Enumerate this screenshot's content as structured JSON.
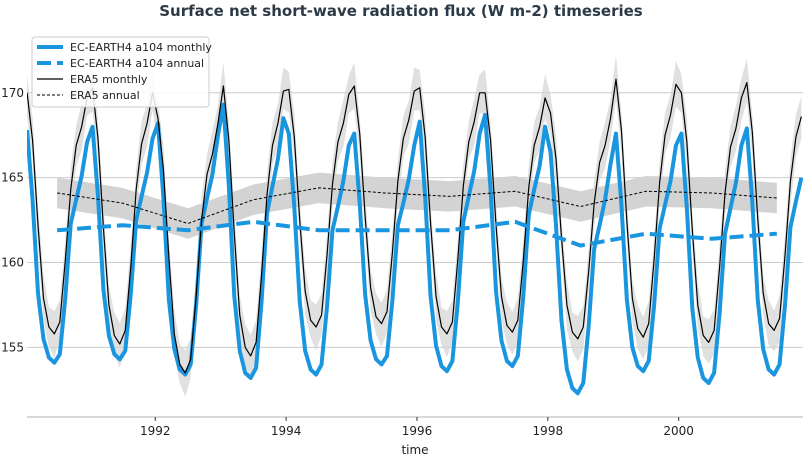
{
  "chart_data": {
    "type": "line",
    "title": "Surface net short-wave radiation flux (W m-2) timeseries",
    "xlabel": "time",
    "ylabel": "",
    "xlim": [
      1990.04,
      2001.9
    ],
    "ylim": [
      150.9,
      173.7
    ],
    "grid": "horizontal",
    "legend_position": "top-left",
    "xticks": [
      1992,
      1994,
      1996,
      1998,
      2000
    ],
    "xtick_labels": [
      "1992",
      "1994",
      "1996",
      "1998",
      "2000"
    ],
    "yticks": [
      155,
      160,
      165,
      170
    ],
    "ytick_labels": [
      "155",
      "160",
      "165",
      "170"
    ],
    "colors": {
      "model": "#1a96e0",
      "obs": "#000000",
      "band": "#d3d3d3",
      "grid": "#cccccc",
      "title": "#2b3a46"
    },
    "monthly_start_year": 1990,
    "series": [
      {
        "name": "EC-EARTH4 a104 monthly",
        "style": "solid-thick",
        "values": [
          167.8,
          163.7,
          158.2,
          155.5,
          154.4,
          154.1,
          154.6,
          157.9,
          162.3,
          163.7,
          165.1,
          167.1,
          168.0,
          163.9,
          158.4,
          155.7,
          154.6,
          154.3,
          154.8,
          158.1,
          162.5,
          163.9,
          165.3,
          167.3,
          168.2,
          163.8,
          157.8,
          154.9,
          153.7,
          153.4,
          154.0,
          157.5,
          162.3,
          163.8,
          165.2,
          167.5,
          169.3,
          164.5,
          158.0,
          154.8,
          153.5,
          153.2,
          153.8,
          157.7,
          162.9,
          164.5,
          166.1,
          168.5,
          167.6,
          163.3,
          157.7,
          154.8,
          153.7,
          153.4,
          154.0,
          157.4,
          161.9,
          163.3,
          164.8,
          166.9,
          167.6,
          163.5,
          158.1,
          155.4,
          154.3,
          154.0,
          154.5,
          157.8,
          162.2,
          163.5,
          164.9,
          166.9,
          168.3,
          163.9,
          158.0,
          155.1,
          153.9,
          153.6,
          154.2,
          157.7,
          162.4,
          163.9,
          165.4,
          167.6,
          168.7,
          164.3,
          158.3,
          155.4,
          154.2,
          153.9,
          154.5,
          158.0,
          162.8,
          164.3,
          165.7,
          168.0,
          166.5,
          162.2,
          156.6,
          153.7,
          152.6,
          152.3,
          152.9,
          156.3,
          160.8,
          162.2,
          163.7,
          165.8,
          167.6,
          163.4,
          157.8,
          155.0,
          153.9,
          153.6,
          154.2,
          157.5,
          162.0,
          163.4,
          164.8,
          166.9,
          167.6,
          163.2,
          157.3,
          154.4,
          153.2,
          152.9,
          153.5,
          157.0,
          161.7,
          163.2,
          164.7,
          166.9,
          167.9,
          163.6,
          157.8,
          154.9,
          153.7,
          153.4,
          154.0,
          157.5,
          162.1,
          163.6,
          165.0
        ]
      },
      {
        "name": "EC-EARTH4 a104 annual",
        "style": "dashed-thick",
        "x": [
          1990.5,
          1991.5,
          1992.5,
          1993.5,
          1994.5,
          1995.5,
          1996.5,
          1997.5,
          1998.5,
          1999.5,
          2000.5,
          2001.5
        ],
        "values": [
          161.9,
          162.2,
          161.9,
          162.4,
          161.9,
          161.9,
          161.9,
          162.4,
          161.0,
          161.7,
          161.4,
          161.7
        ]
      },
      {
        "name": "ERA5 monthly",
        "style": "solid-thin",
        "band_halfwidth": 1.0,
        "values": [
          170.0,
          167.2,
          162.2,
          157.9,
          156.2,
          155.8,
          156.5,
          160.1,
          164.3,
          166.9,
          168.0,
          169.7,
          170.3,
          167.3,
          162.0,
          157.5,
          155.7,
          155.2,
          156.0,
          159.7,
          164.3,
          167.0,
          168.2,
          170.0,
          168.5,
          165.5,
          160.3,
          155.8,
          154.0,
          153.5,
          154.3,
          158.0,
          162.5,
          165.2,
          166.4,
          168.2,
          170.4,
          167.2,
          161.7,
          156.9,
          155.0,
          154.5,
          155.3,
          159.3,
          164.0,
          166.9,
          168.2,
          170.1,
          170.2,
          167.4,
          162.5,
          158.3,
          156.6,
          156.2,
          156.9,
          160.4,
          164.6,
          167.1,
          168.2,
          169.9,
          170.4,
          167.6,
          162.7,
          158.5,
          156.8,
          156.4,
          157.1,
          160.6,
          164.8,
          167.3,
          168.4,
          170.1,
          170.3,
          167.4,
          162.3,
          158.0,
          156.2,
          155.8,
          156.5,
          160.2,
          164.5,
          167.1,
          168.3,
          170.0,
          170.0,
          167.2,
          162.2,
          158.0,
          156.3,
          155.9,
          156.6,
          160.1,
          164.4,
          166.9,
          168.0,
          169.7,
          168.8,
          166.1,
          161.5,
          157.5,
          155.9,
          155.5,
          156.2,
          159.5,
          163.5,
          165.9,
          166.9,
          168.5,
          170.8,
          167.8,
          162.4,
          157.9,
          156.1,
          155.6,
          156.4,
          160.2,
          164.7,
          167.5,
          168.7,
          170.5,
          170.0,
          167.1,
          161.9,
          157.5,
          155.7,
          155.3,
          156.0,
          159.7,
          164.1,
          166.8,
          167.9,
          169.7,
          170.6,
          167.7,
          162.6,
          158.2,
          156.4,
          156.0,
          156.7,
          160.4,
          164.8,
          167.4,
          168.6
        ]
      },
      {
        "name": "ERA5 annual",
        "style": "dashed-thin",
        "band_halfwidth": 0.9,
        "x": [
          1990.5,
          1991.5,
          1992.5,
          1993.5,
          1994.5,
          1995.5,
          1996.5,
          1997.5,
          1998.5,
          1999.5,
          2000.5,
          2001.5
        ],
        "values": [
          164.1,
          163.5,
          162.3,
          163.7,
          164.4,
          164.1,
          163.9,
          164.2,
          163.3,
          164.2,
          164.1,
          163.8
        ]
      }
    ]
  }
}
